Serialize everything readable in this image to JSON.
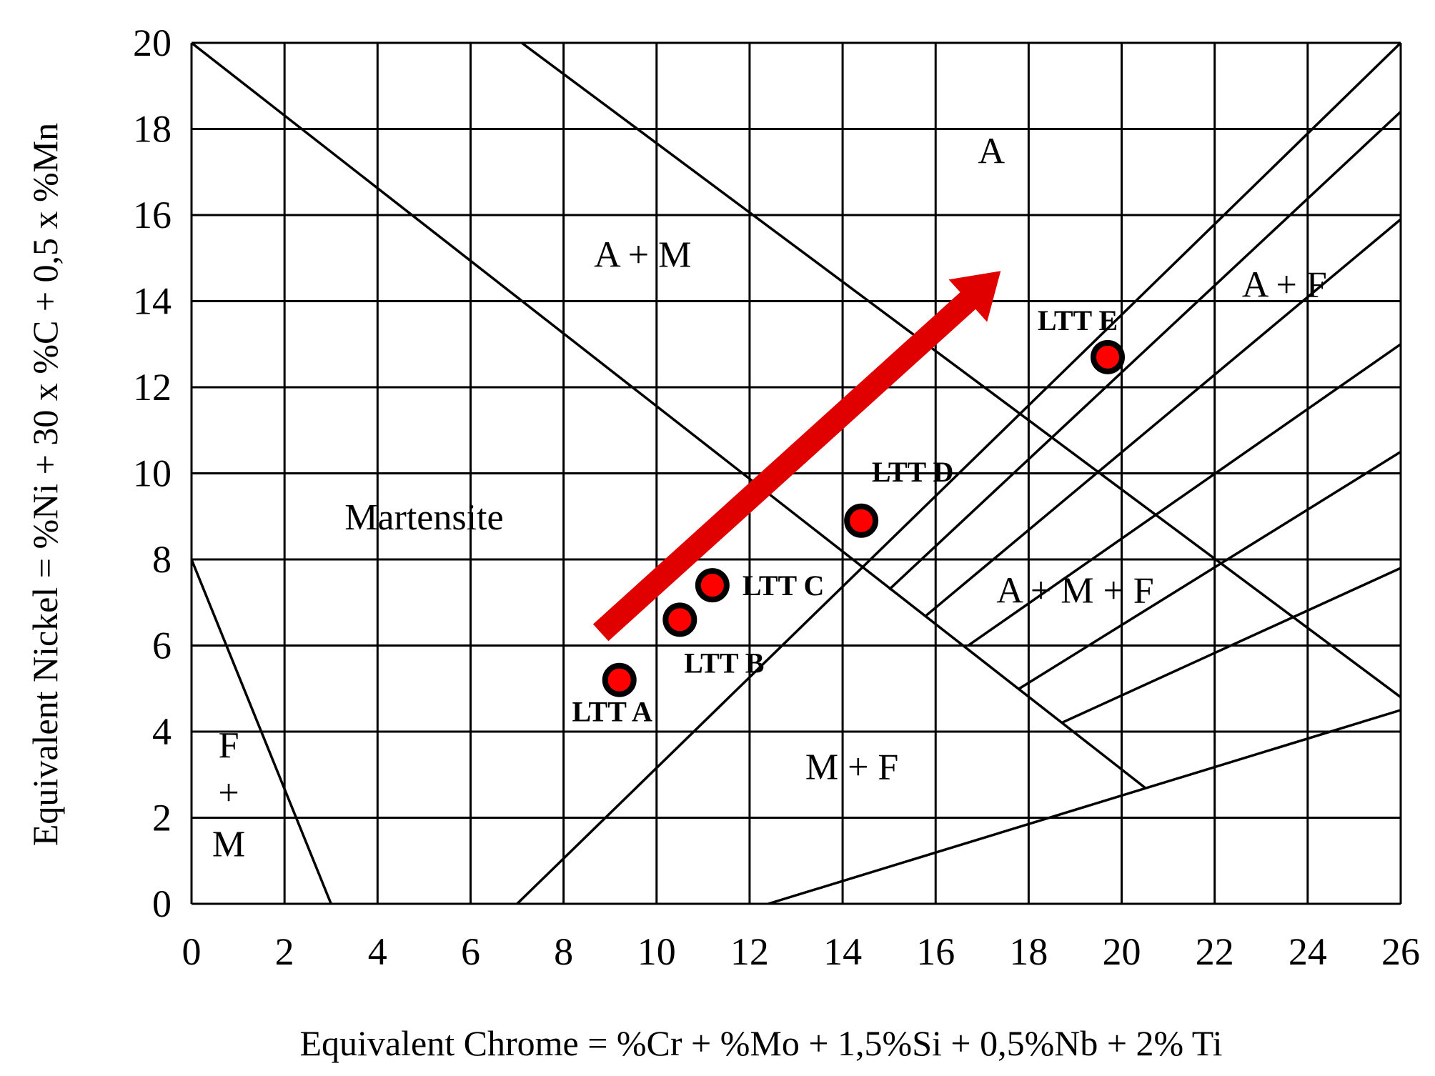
{
  "chart_data": {
    "type": "scatter",
    "title": "",
    "xlabel": "Equivalent Chrome = %Cr + %Mo + 1,5%Si + 0,5%Nb + 2%    Ti",
    "ylabel": "Equivalent Nickel = %Ni + 30 x %C + 0,5 x %Mn",
    "xlim": [
      0,
      26
    ],
    "ylim": [
      0,
      20
    ],
    "grid": true,
    "x_ticks": [
      0,
      2,
      4,
      6,
      8,
      10,
      12,
      14,
      16,
      18,
      20,
      22,
      24,
      26
    ],
    "y_ticks": [
      0,
      2,
      4,
      6,
      8,
      10,
      12,
      14,
      16,
      18,
      20
    ],
    "points": [
      {
        "label": "LTT A",
        "x": 9.2,
        "y": 5.2
      },
      {
        "label": "LTT B",
        "x": 10.5,
        "y": 6.6
      },
      {
        "label": "LTT C",
        "x": 11.2,
        "y": 7.4
      },
      {
        "label": "LTT D",
        "x": 14.4,
        "y": 8.9
      },
      {
        "label": "LTT E",
        "x": 19.7,
        "y": 12.7
      }
    ],
    "regions": [
      {
        "label": "A",
        "x": 17.2,
        "y": 17.2
      },
      {
        "label": "A + M",
        "x": 9.7,
        "y": 14.8
      },
      {
        "label": "A + F",
        "x": 23.5,
        "y": 14.1
      },
      {
        "label": "Martensite",
        "x": 5.0,
        "y": 8.7
      },
      {
        "label": "A + M + F",
        "x": 19.0,
        "y": 7.0
      },
      {
        "label": "M + F",
        "x": 14.2,
        "y": 2.9
      },
      {
        "label": "F",
        "x": 0.8,
        "y": 3.4
      },
      {
        "label": "+",
        "x": 0.8,
        "y": 2.3
      },
      {
        "label": "M",
        "x": 0.8,
        "y": 1.1
      }
    ],
    "boundary_lines": [
      [
        [
          0,
          20
        ],
        [
          20.5,
          2.7
        ]
      ],
      [
        [
          7.1,
          20
        ],
        [
          26,
          4.8
        ]
      ],
      [
        [
          0,
          8
        ],
        [
          3,
          0
        ]
      ],
      [
        [
          7,
          0
        ],
        [
          26,
          20
        ]
      ],
      [
        [
          12.4,
          0
        ],
        [
          26,
          4.5
        ]
      ],
      [
        [
          15,
          7.3
        ],
        [
          26,
          18.4
        ]
      ],
      [
        [
          15.8,
          6.7
        ],
        [
          26,
          15.9
        ]
      ],
      [
        [
          16.7,
          6
        ],
        [
          26,
          13
        ]
      ],
      [
        [
          17.8,
          5
        ],
        [
          26,
          10.5
        ]
      ],
      [
        [
          18.7,
          4.2
        ],
        [
          26,
          7.8
        ]
      ]
    ],
    "arrow": {
      "from": [
        8.8,
        6.3
      ],
      "to": [
        17.4,
        14.7
      ],
      "color": "#e00000"
    },
    "colors": {
      "point_fill": "#ff0000",
      "point_stroke": "#000000",
      "arrow": "#e00000"
    }
  }
}
